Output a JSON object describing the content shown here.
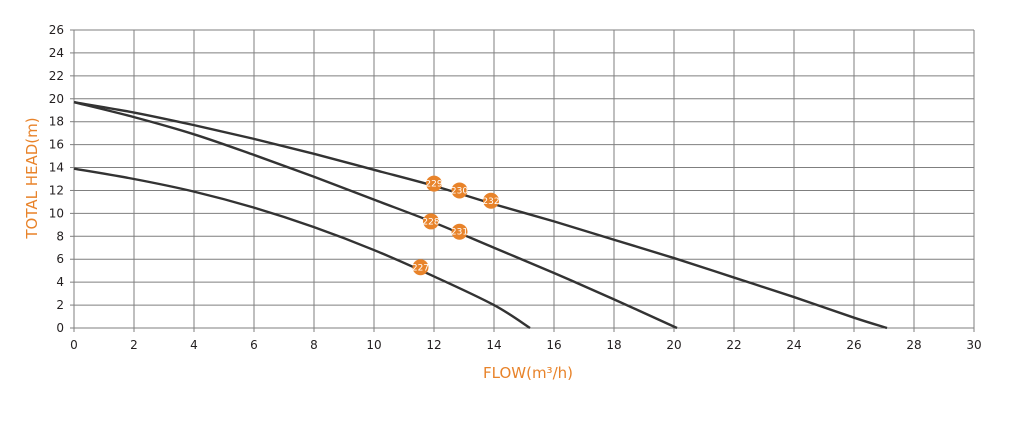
{
  "chart_data": {
    "type": "line",
    "xlabel": "FLOW(m³/h)",
    "ylabel": "TOTAL HEAD(m)",
    "xlim": [
      0,
      30
    ],
    "ylim": [
      0,
      26
    ],
    "x_ticks": [
      0,
      2,
      4,
      6,
      8,
      10,
      12,
      14,
      16,
      18,
      20,
      22,
      24,
      26,
      28,
      30
    ],
    "y_ticks": [
      0,
      2,
      4,
      6,
      8,
      10,
      12,
      14,
      16,
      18,
      20,
      22,
      24,
      26
    ],
    "grid": true,
    "series": [
      {
        "points": [
          [
            0,
            19.7
          ],
          [
            2,
            18.8
          ],
          [
            4,
            17.7
          ],
          [
            6,
            16.5
          ],
          [
            8,
            15.2
          ],
          [
            10,
            13.8
          ],
          [
            12,
            12.4
          ],
          [
            14,
            10.8
          ],
          [
            16,
            9.3
          ],
          [
            18,
            7.7
          ],
          [
            20,
            6.1
          ],
          [
            22,
            4.4
          ],
          [
            24,
            2.7
          ],
          [
            26,
            0.9
          ],
          [
            27.1,
            0
          ]
        ]
      },
      {
        "points": [
          [
            0,
            19.7
          ],
          [
            2,
            18.4
          ],
          [
            4,
            16.9
          ],
          [
            6,
            15.1
          ],
          [
            8,
            13.2
          ],
          [
            10,
            11.2
          ],
          [
            12,
            9.2
          ],
          [
            14,
            7.0
          ],
          [
            16,
            4.8
          ],
          [
            18,
            2.5
          ],
          [
            20.1,
            0
          ]
        ]
      },
      {
        "points": [
          [
            0,
            13.9
          ],
          [
            2,
            13.0
          ],
          [
            4,
            11.9
          ],
          [
            6,
            10.5
          ],
          [
            8,
            8.8
          ],
          [
            10,
            6.8
          ],
          [
            12,
            4.5
          ],
          [
            14,
            2.0
          ],
          [
            15.2,
            0
          ]
        ]
      }
    ],
    "markers": [
      {
        "label": "229",
        "x": 12.0,
        "y": 12.6
      },
      {
        "label": "230",
        "x": 12.85,
        "y": 12.0
      },
      {
        "label": "232",
        "x": 13.9,
        "y": 11.1
      },
      {
        "label": "228",
        "x": 11.9,
        "y": 9.3
      },
      {
        "label": "231",
        "x": 12.85,
        "y": 8.4
      },
      {
        "label": "227",
        "x": 11.55,
        "y": 5.3
      }
    ],
    "colors": {
      "accent": "#e8832a",
      "curve": "#333333",
      "grid": "#7f7f7f",
      "tick_text": "#231f20",
      "marker_text": "#ffffff"
    }
  }
}
